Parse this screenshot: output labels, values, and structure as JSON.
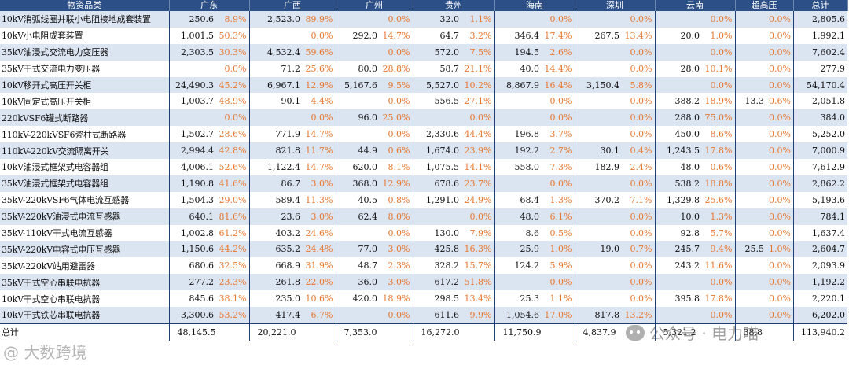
{
  "headers": [
    "物资品类",
    "广东",
    "广西",
    "广州",
    "贵州",
    "海南",
    "深圳",
    "云南",
    "超高压",
    "总计"
  ],
  "rows": [
    {
      "name": "10kV消弧线圈并联小电阻接地成套装置",
      "cells": [
        [
          "250.6",
          "8.9%"
        ],
        [
          "2,523.0",
          "89.9%"
        ],
        [
          "",
          "0.0%"
        ],
        [
          "32.0",
          "1.1%"
        ],
        [
          "",
          "0.0%"
        ],
        [
          "",
          "0.0%"
        ],
        [
          "",
          "0.0%"
        ],
        [
          "",
          "0.0%"
        ]
      ],
      "total": "2,805.6"
    },
    {
      "name": "10kV小电阻成套装置",
      "cells": [
        [
          "1,001.5",
          "50.3%"
        ],
        [
          "",
          "0.0%"
        ],
        [
          "292.0",
          "14.7%"
        ],
        [
          "64.7",
          "3.2%"
        ],
        [
          "346.4",
          "17.4%"
        ],
        [
          "267.5",
          "13.4%"
        ],
        [
          "20.0",
          "1.0%"
        ],
        [
          "",
          "0.0%"
        ]
      ],
      "total": "1,992.1"
    },
    {
      "name": "35kV油浸式交流电力变压器",
      "cells": [
        [
          "2,303.5",
          "30.3%"
        ],
        [
          "4,532.4",
          "59.6%"
        ],
        [
          "",
          "0.0%"
        ],
        [
          "572.0",
          "7.5%"
        ],
        [
          "194.5",
          "2.6%"
        ],
        [
          "",
          "0.0%"
        ],
        [
          "",
          "0.0%"
        ],
        [
          "",
          "0.0%"
        ]
      ],
      "total": "7,602.4"
    },
    {
      "name": "35kV干式交流电力变压器",
      "cells": [
        [
          "",
          "0.0%"
        ],
        [
          "71.2",
          "25.6%"
        ],
        [
          "80.0",
          "28.8%"
        ],
        [
          "58.7",
          "21.1%"
        ],
        [
          "40.0",
          "14.4%"
        ],
        [
          "",
          "0.0%"
        ],
        [
          "28.0",
          "10.1%"
        ],
        [
          "",
          "0.0%"
        ]
      ],
      "total": "277.9"
    },
    {
      "name": "10kV移开式高压开关柜",
      "cells": [
        [
          "24,490.3",
          "45.2%"
        ],
        [
          "6,967.1",
          "12.9%"
        ],
        [
          "5,167.6",
          "9.5%"
        ],
        [
          "5,527.0",
          "10.2%"
        ],
        [
          "8,867.9",
          "16.4%"
        ],
        [
          "3,150.4",
          "5.8%"
        ],
        [
          "",
          "0.0%"
        ],
        [
          "",
          "0.0%"
        ]
      ],
      "total": "54,170.4"
    },
    {
      "name": "10kV固定式高压开关柜",
      "cells": [
        [
          "1,003.7",
          "48.9%"
        ],
        [
          "90.1",
          "4.4%"
        ],
        [
          "",
          "0.0%"
        ],
        [
          "556.5",
          "27.1%"
        ],
        [
          "",
          "0.0%"
        ],
        [
          "",
          "0.0%"
        ],
        [
          "388.2",
          "18.9%"
        ],
        [
          "13.3",
          "0.6%"
        ]
      ],
      "total": "2,051.8"
    },
    {
      "name": "220kVSF6罐式断路器",
      "cells": [
        [
          "",
          "0.0%"
        ],
        [
          "",
          "0.0%"
        ],
        [
          "96.0",
          "25.0%"
        ],
        [
          "",
          "0.0%"
        ],
        [
          "",
          "0.0%"
        ],
        [
          "",
          "0.0%"
        ],
        [
          "288.0",
          "75.0%"
        ],
        [
          "",
          "0.0%"
        ]
      ],
      "total": "384.0"
    },
    {
      "name": "110kV-220kVSF6瓷柱式断路器",
      "cells": [
        [
          "1,502.7",
          "28.6%"
        ],
        [
          "771.9",
          "14.7%"
        ],
        [
          "",
          "0.0%"
        ],
        [
          "2,330.6",
          "44.4%"
        ],
        [
          "196.8",
          "3.7%"
        ],
        [
          "",
          "0.0%"
        ],
        [
          "450.0",
          "8.6%"
        ],
        [
          "",
          "0.0%"
        ]
      ],
      "total": "5,252.0"
    },
    {
      "name": "110kV-220kV交流隔离开关",
      "cells": [
        [
          "2,994.4",
          "42.8%"
        ],
        [
          "821.8",
          "11.7%"
        ],
        [
          "44.9",
          "0.6%"
        ],
        [
          "1,674.0",
          "23.9%"
        ],
        [
          "192.2",
          "2.7%"
        ],
        [
          "30.1",
          "0.4%"
        ],
        [
          "1,243.5",
          "17.8%"
        ],
        [
          "",
          "0.0%"
        ]
      ],
      "total": "7,000.9"
    },
    {
      "name": "10kV油浸式框架式电容器组",
      "cells": [
        [
          "4,006.1",
          "52.6%"
        ],
        [
          "1,122.4",
          "14.7%"
        ],
        [
          "620.0",
          "8.1%"
        ],
        [
          "1,075.5",
          "14.1%"
        ],
        [
          "558.0",
          "7.3%"
        ],
        [
          "182.9",
          "2.4%"
        ],
        [
          "48.0",
          "0.6%"
        ],
        [
          "",
          "0.0%"
        ]
      ],
      "total": "7,612.9"
    },
    {
      "name": "35kV油浸式框架式电容器组",
      "cells": [
        [
          "1,190.8",
          "41.6%"
        ],
        [
          "86.7",
          "3.0%"
        ],
        [
          "368.0",
          "12.9%"
        ],
        [
          "678.6",
          "23.7%"
        ],
        [
          "",
          "0.0%"
        ],
        [
          "",
          "0.0%"
        ],
        [
          "538.2",
          "18.8%"
        ],
        [
          "",
          "0.0%"
        ]
      ],
      "total": "2,862.2"
    },
    {
      "name": "35kV-220kVSF6气体电流互感器",
      "cells": [
        [
          "1,504.3",
          "29.0%"
        ],
        [
          "589.4",
          "11.3%"
        ],
        [
          "40.5",
          "0.8%"
        ],
        [
          "1,291.0",
          "24.9%"
        ],
        [
          "68.4",
          "1.3%"
        ],
        [
          "370.2",
          "7.1%"
        ],
        [
          "1,329.8",
          "25.6%"
        ],
        [
          "",
          "0.0%"
        ]
      ],
      "total": "5,193.6"
    },
    {
      "name": "35kV-220kV油浸式电流互感器",
      "cells": [
        [
          "640.1",
          "81.6%"
        ],
        [
          "23.6",
          "3.0%"
        ],
        [
          "62.4",
          "8.0%"
        ],
        [
          "",
          "0.0%"
        ],
        [
          "48.0",
          "6.1%"
        ],
        [
          "",
          "0.0%"
        ],
        [
          "10.0",
          "1.3%"
        ],
        [
          "",
          "0.0%"
        ]
      ],
      "total": "784.1"
    },
    {
      "name": "35kV-110kV干式电流互感器",
      "cells": [
        [
          "1,002.8",
          "61.2%"
        ],
        [
          "403.2",
          "24.6%"
        ],
        [
          "",
          "0.0%"
        ],
        [
          "130.0",
          "7.9%"
        ],
        [
          "8.6",
          "0.5%"
        ],
        [
          "",
          "0.0%"
        ],
        [
          "92.8",
          "5.7%"
        ],
        [
          "",
          "0.0%"
        ]
      ],
      "total": "1,637.4"
    },
    {
      "name": "35kV-220kV电容式电压互感器",
      "cells": [
        [
          "1,150.6",
          "44.2%"
        ],
        [
          "635.2",
          "24.4%"
        ],
        [
          "77.0",
          "3.0%"
        ],
        [
          "425.8",
          "16.3%"
        ],
        [
          "25.9",
          "1.0%"
        ],
        [
          "19.0",
          "0.7%"
        ],
        [
          "245.7",
          "9.4%"
        ],
        [
          "25.5",
          "1.0%"
        ]
      ],
      "total": "2,604.7"
    },
    {
      "name": "35kV-220kV站用避雷器",
      "cells": [
        [
          "680.6",
          "32.5%"
        ],
        [
          "668.9",
          "31.9%"
        ],
        [
          "48.7",
          "2.3%"
        ],
        [
          "328.2",
          "15.7%"
        ],
        [
          "124.2",
          "5.9%"
        ],
        [
          "",
          "0.0%"
        ],
        [
          "243.2",
          "11.6%"
        ],
        [
          "",
          "0.0%"
        ]
      ],
      "total": "2,093.9"
    },
    {
      "name": "35kV干式空心串联电抗器",
      "cells": [
        [
          "277.2",
          "23.3%"
        ],
        [
          "261.8",
          "22.0%"
        ],
        [
          "36.0",
          "3.0%"
        ],
        [
          "617.2",
          "51.8%"
        ],
        [
          "",
          "0.0%"
        ],
        [
          "",
          "0.0%"
        ],
        [
          "",
          "0.0%"
        ],
        [
          "",
          "0.0%"
        ]
      ],
      "total": "1,192.2"
    },
    {
      "name": "10kV干式空心串联电抗器",
      "cells": [
        [
          "845.6",
          "38.1%"
        ],
        [
          "235.0",
          "10.6%"
        ],
        [
          "420.0",
          "18.9%"
        ],
        [
          "298.5",
          "13.4%"
        ],
        [
          "25.3",
          "1.1%"
        ],
        [
          "",
          "0.0%"
        ],
        [
          "395.8",
          "17.8%"
        ],
        [
          "",
          "0.0%"
        ]
      ],
      "total": "2,220.1"
    },
    {
      "name": "10kV干式铁芯串联电抗器",
      "cells": [
        [
          "3,300.6",
          "53.2%"
        ],
        [
          "417.4",
          "6.7%"
        ],
        [
          "",
          "0.0%"
        ],
        [
          "611.6",
          "9.9%"
        ],
        [
          "1,054.6",
          "17.0%"
        ],
        [
          "817.8",
          "13.2%"
        ],
        [
          "",
          "0.0%"
        ],
        [
          "",
          "0.0%"
        ]
      ],
      "total": "6,202.0"
    }
  ],
  "summary": {
    "name": "总计",
    "values": [
      "48,145.5",
      "20,221.0",
      "7,353.0",
      "16,272.0",
      "11,750.9",
      "4,837.9",
      "5,321.2",
      "38.8"
    ],
    "total": "113,940.2"
  },
  "watermark_left": "@ 大数跨境",
  "watermark_right": "公众号 · 电力喵"
}
